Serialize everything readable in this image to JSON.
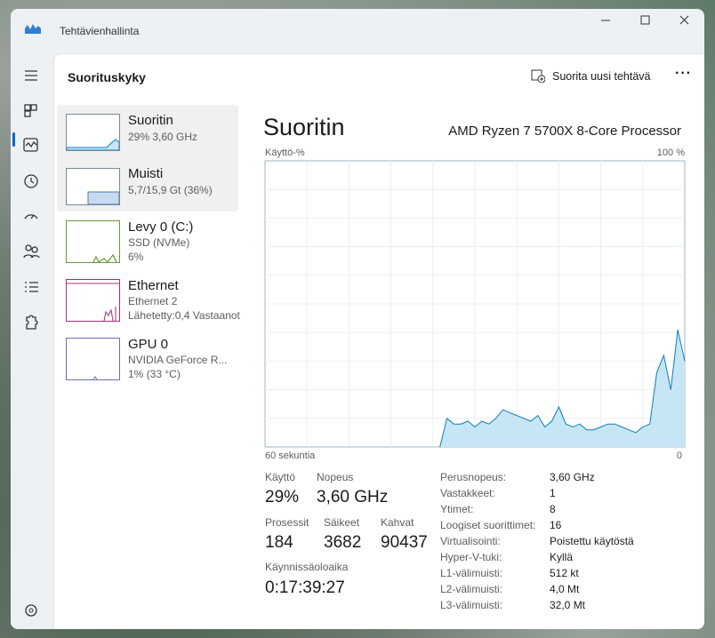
{
  "window": {
    "title": "Tehtävienhallinta"
  },
  "header": {
    "title": "Suorituskyky",
    "run_new_task": "Suorita uusi tehtävä"
  },
  "sidebar": [
    {
      "title": "Suoritin",
      "lines": [
        "29% 3,60 GHz"
      ]
    },
    {
      "title": "Muisti",
      "lines": [
        "5,7/15,9 Gt (36%)"
      ]
    },
    {
      "title": "Levy 0 (C:)",
      "lines": [
        "SSD (NVMe)",
        "6%"
      ]
    },
    {
      "title": "Ethernet",
      "lines": [
        "Ethernet 2",
        "Lähetetty:0,4 Vastaanot"
      ]
    },
    {
      "title": "GPU 0",
      "lines": [
        "NVIDIA GeForce R...",
        "1% (33 °C)"
      ]
    }
  ],
  "detail": {
    "title": "Suoritin",
    "processor": "AMD Ryzen 7 5700X 8-Core Processor"
  },
  "chart_data": {
    "type": "area",
    "y_label": "Käyttö-%",
    "color": "#117dbb",
    "fill": "#c6e6f5",
    "ylim": [
      0,
      100
    ],
    "yticks": [
      {
        "value": 100,
        "label": "100 %"
      }
    ],
    "xlim": [
      60,
      0
    ],
    "xticks": [
      {
        "value": 60,
        "label": "60 sekuntia"
      },
      0
    ],
    "x": [
      35,
      34,
      33,
      32,
      31,
      30,
      29,
      28,
      27,
      26,
      25,
      24,
      23,
      22,
      21,
      20,
      19,
      18,
      17,
      16,
      15,
      14,
      13,
      12,
      11,
      10,
      9,
      8,
      7,
      6,
      5,
      4,
      3,
      2,
      1,
      0
    ],
    "values": [
      0,
      10,
      8,
      8,
      9,
      7,
      9,
      8,
      10,
      13,
      12,
      11,
      10,
      9,
      11,
      7,
      9,
      14,
      8,
      7,
      8,
      6,
      6,
      7,
      8,
      8,
      7,
      6,
      5,
      7,
      8,
      26,
      32,
      20,
      41,
      30
    ]
  },
  "stats": [
    {
      "label": "Käyttö",
      "value": "29%"
    },
    {
      "label": "Nopeus",
      "value": "3,60 GHz"
    },
    {
      "label": "Prosessit",
      "value": "184"
    },
    {
      "label": "Säikeet",
      "value": "3682"
    },
    {
      "label": "Kahvat",
      "value": "90437"
    },
    {
      "label": "Käynnissäoloaika",
      "value": "0:17:39:27"
    }
  ],
  "specs": [
    [
      "Perusnopeus:",
      "3,60 GHz"
    ],
    [
      "Vastakkeet:",
      "1"
    ],
    [
      "Ytimet:",
      "8"
    ],
    [
      "Loogiset suoritt­imet:",
      "16"
    ],
    [
      "Virtualisointi:",
      "Poistettu käytöstä"
    ],
    [
      "Hyper-V-tuki:",
      "Kyllä"
    ],
    [
      "L1-välimuisti:",
      "512 kt"
    ],
    [
      "L2-välimuisti:",
      "4,0 Mt"
    ],
    [
      "L3-välimuisti:",
      "32,0 Mt"
    ]
  ]
}
